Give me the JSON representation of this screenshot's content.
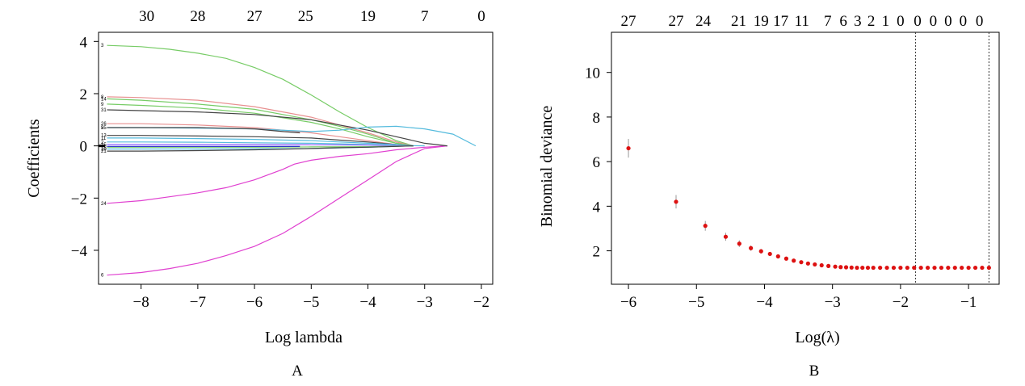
{
  "chart_data": [
    {
      "type": "line",
      "panel_label": "A",
      "xlabel": "Log lambda",
      "ylabel": "Coefficients",
      "xlim": [
        -8.75,
        -1.8
      ],
      "ylim": [
        -5.3,
        4.35
      ],
      "x_ticks": [
        -8,
        -7,
        -6,
        -5,
        -4,
        -3,
        -2
      ],
      "y_ticks": [
        -4,
        -2,
        0,
        2,
        4
      ],
      "top_axis": {
        "positions": [
          -7.9,
          -7.0,
          -6.0,
          -5.1,
          -4.0,
          -3.0,
          -2.0
        ],
        "labels": [
          "30",
          "28",
          "27",
          "25",
          "19",
          "7",
          "0"
        ]
      },
      "grid": false,
      "series": [
        {
          "label": "3",
          "color": "#77cc66",
          "x": [
            -8.6,
            -8,
            -7.5,
            -7,
            -6.5,
            -6,
            -5.5,
            -5,
            -4.5,
            -4,
            -3.5,
            -3.2
          ],
          "y": [
            3.85,
            3.8,
            3.7,
            3.55,
            3.35,
            3.0,
            2.55,
            1.95,
            1.3,
            0.7,
            0.2,
            0
          ]
        },
        {
          "label": "6",
          "color": "#e040d0",
          "x": [
            -8.6,
            -8,
            -7.5,
            -7,
            -6.5,
            -6,
            -5.5,
            -5,
            -4.5,
            -4,
            -3.5,
            -3,
            -2.6
          ],
          "y": [
            -4.95,
            -4.85,
            -4.7,
            -4.5,
            -4.2,
            -3.85,
            -3.35,
            -2.7,
            -2.0,
            -1.3,
            -0.6,
            -0.1,
            0
          ]
        },
        {
          "label": "24",
          "color": "#e040d0",
          "x": [
            -8.6,
            -8,
            -7.5,
            -7,
            -6.5,
            -6,
            -5.5,
            -5.3,
            -5,
            -4.5,
            -4,
            -3.5,
            -3,
            -2.6
          ],
          "y": [
            -2.2,
            -2.1,
            -1.95,
            -1.8,
            -1.6,
            -1.3,
            -0.9,
            -0.7,
            -0.55,
            -0.4,
            -0.3,
            -0.15,
            -0.05,
            0
          ]
        },
        {
          "label": "8",
          "color": "#e89090",
          "x": [
            -8.6,
            -8,
            -7,
            -6,
            -5,
            -4.5,
            -4,
            -3.5,
            -3.2
          ],
          "y": [
            1.88,
            1.85,
            1.75,
            1.5,
            1.1,
            0.8,
            0.5,
            0.15,
            0
          ]
        },
        {
          "label": "14",
          "color": "#77cc66",
          "x": [
            -8.6,
            -8,
            -7,
            -6,
            -5,
            -4.5,
            -4,
            -3.5,
            -3.2
          ],
          "y": [
            1.8,
            1.75,
            1.6,
            1.4,
            1.0,
            0.75,
            0.45,
            0.1,
            0
          ]
        },
        {
          "label": "9",
          "color": "#77cc66",
          "x": [
            -8.6,
            -8,
            -7,
            -6,
            -5,
            -4.5,
            -4,
            -3.5,
            -3.2
          ],
          "y": [
            1.6,
            1.55,
            1.45,
            1.25,
            0.9,
            0.65,
            0.35,
            0.1,
            0
          ]
        },
        {
          "label": "31",
          "color": "#444444",
          "x": [
            -8.6,
            -8,
            -7,
            -6,
            -5,
            -4.5,
            -4,
            -3.5,
            -3,
            -2.6
          ],
          "y": [
            1.38,
            1.35,
            1.3,
            1.2,
            1.0,
            0.8,
            0.6,
            0.35,
            0.1,
            0
          ]
        },
        {
          "label": "26",
          "color": "#e89090",
          "x": [
            -8.6,
            -8,
            -7,
            -6,
            -5,
            -4.5,
            -4,
            -3.5,
            -3.2
          ],
          "y": [
            0.85,
            0.85,
            0.8,
            0.7,
            0.5,
            0.35,
            0.2,
            0.05,
            0
          ]
        },
        {
          "label": "5",
          "color": "#55bbdd",
          "x": [
            -8.6,
            -8,
            -7,
            -6,
            -5,
            -4.5,
            -4,
            -3.5,
            -3,
            -2.5,
            -2.1
          ],
          "y": [
            0.7,
            0.7,
            0.68,
            0.65,
            0.55,
            0.6,
            0.72,
            0.75,
            0.65,
            0.45,
            0
          ]
        },
        {
          "label": "25",
          "color": "#444444",
          "x": [
            -8.6,
            -8,
            -7,
            -6,
            -5.5,
            -5.2
          ],
          "y": [
            0.7,
            0.7,
            0.7,
            0.65,
            0.55,
            0.5
          ]
        },
        {
          "label": "13",
          "color": "#444444",
          "x": [
            -8.6,
            -8,
            -7,
            -6,
            -5,
            -4.5,
            -4,
            -3.5,
            -3.2
          ],
          "y": [
            0.4,
            0.4,
            0.38,
            0.35,
            0.3,
            0.22,
            0.15,
            0.05,
            0
          ]
        },
        {
          "label": "11",
          "color": "#55bbdd",
          "x": [
            -8.6,
            -8,
            -7,
            -6,
            -5,
            -4.5,
            -4,
            -3.5,
            -3.2
          ],
          "y": [
            0.3,
            0.3,
            0.28,
            0.25,
            0.2,
            0.15,
            0.1,
            0.05,
            0
          ]
        },
        {
          "label": "2",
          "color": "#55bbdd",
          "x": [
            -8.6,
            -8,
            -7,
            -6,
            -5,
            -4.5,
            -4,
            -3.5,
            -3
          ],
          "y": [
            0.15,
            0.15,
            0.14,
            0.12,
            0.1,
            0.08,
            0.05,
            0.02,
            0
          ]
        },
        {
          "label": "15",
          "color": "#9060ff",
          "x": [
            -8.6,
            -8,
            -7,
            -6,
            -5,
            -4,
            -3.5,
            -3.2
          ],
          "y": [
            0.05,
            0.05,
            0.05,
            0.05,
            0.04,
            0.03,
            0.01,
            0
          ]
        },
        {
          "label": "18",
          "color": "#77cc66",
          "x": [
            -8.6,
            -8,
            -7,
            -6,
            -5,
            -4,
            -3.5,
            -3.2
          ],
          "y": [
            -0.05,
            -0.05,
            -0.05,
            -0.05,
            -0.04,
            -0.03,
            -0.01,
            0
          ]
        },
        {
          "label": "10",
          "color": "#55bbdd",
          "x": [
            -8.6,
            -8,
            -7,
            -6,
            -5,
            -4.5,
            -4,
            -3.5,
            -3.2
          ],
          "y": [
            -0.12,
            -0.12,
            -0.12,
            -0.11,
            -0.1,
            -0.08,
            -0.05,
            -0.02,
            0
          ]
        },
        {
          "label": "21",
          "color": "#444444",
          "x": [
            -8.6,
            -8,
            -7,
            -6,
            -5,
            -4.5,
            -4,
            -3.5,
            -3.2
          ],
          "y": [
            -0.2,
            -0.2,
            -0.18,
            -0.15,
            -0.1,
            -0.07,
            -0.05,
            -0.02,
            0
          ]
        },
        {
          "label": "",
          "color": "#2222cc",
          "x": [
            -8.6,
            -8,
            -7,
            -6,
            -5.2
          ],
          "y": [
            -0.02,
            -0.02,
            -0.02,
            -0.02,
            -0.02
          ]
        }
      ]
    },
    {
      "type": "scatter",
      "panel_label": "B",
      "xlabel": "Log(λ)",
      "ylabel": "Binomial deviance",
      "xlim": [
        -6.25,
        -0.55
      ],
      "ylim": [
        0.5,
        11.8
      ],
      "x_ticks": [
        -6,
        -5,
        -4,
        -3,
        -2,
        -1
      ],
      "y_ticks": [
        2,
        4,
        6,
        8,
        10
      ],
      "top_axis": {
        "positions": [
          -6.0,
          -5.3,
          -4.9,
          -4.38,
          -4.05,
          -3.76,
          -3.45,
          -3.07,
          -2.84,
          -2.63,
          -2.43,
          -2.22,
          -2.0,
          -1.75,
          -1.52,
          -1.3,
          -1.08,
          -0.84
        ],
        "labels": [
          "27",
          "27",
          "24",
          "21",
          "19",
          "17",
          "11",
          "7",
          "6",
          "3",
          "2",
          "1",
          "0",
          "0",
          "0",
          "0",
          "0",
          "0"
        ]
      },
      "vlines": [
        -1.78,
        -0.7
      ],
      "grid": false,
      "x": [
        -6.0,
        -5.3,
        -4.87,
        -4.57,
        -4.37,
        -4.2,
        -4.05,
        -3.92,
        -3.8,
        -3.68,
        -3.57,
        -3.46,
        -3.36,
        -3.26,
        -3.16,
        -3.06,
        -2.96,
        -2.88,
        -2.8,
        -2.72,
        -2.64,
        -2.56,
        -2.48,
        -2.4,
        -2.3,
        -2.2,
        -2.1,
        -2.0,
        -1.9,
        -1.8,
        -1.7,
        -1.6,
        -1.5,
        -1.4,
        -1.3,
        -1.2,
        -1.1,
        -1.0,
        -0.9,
        -0.8,
        -0.7
      ],
      "y": [
        6.6,
        4.2,
        3.12,
        2.63,
        2.32,
        2.12,
        1.98,
        1.86,
        1.75,
        1.65,
        1.56,
        1.49,
        1.43,
        1.39,
        1.35,
        1.32,
        1.29,
        1.27,
        1.26,
        1.25,
        1.24,
        1.24,
        1.24,
        1.24,
        1.24,
        1.24,
        1.24,
        1.24,
        1.24,
        1.24,
        1.24,
        1.24,
        1.24,
        1.24,
        1.24,
        1.24,
        1.24,
        1.24,
        1.24,
        1.24,
        1.24
      ],
      "error": [
        0.42,
        0.3,
        0.22,
        0.18,
        0.15,
        0.12,
        0.1,
        0.08,
        0.07,
        0.06,
        0.05,
        0.04,
        0.04,
        0.03,
        0.03,
        0.03,
        0.02,
        0.02,
        0.02,
        0.02,
        0.02,
        0.02,
        0.02,
        0.02,
        0.02,
        0.02,
        0.02,
        0.02,
        0.02,
        0.02,
        0.02,
        0.02,
        0.02,
        0.02,
        0.02,
        0.02,
        0.02,
        0.02,
        0.02,
        0.02,
        0.02
      ],
      "point_color": "#dd1111",
      "error_color": "#999999"
    }
  ]
}
